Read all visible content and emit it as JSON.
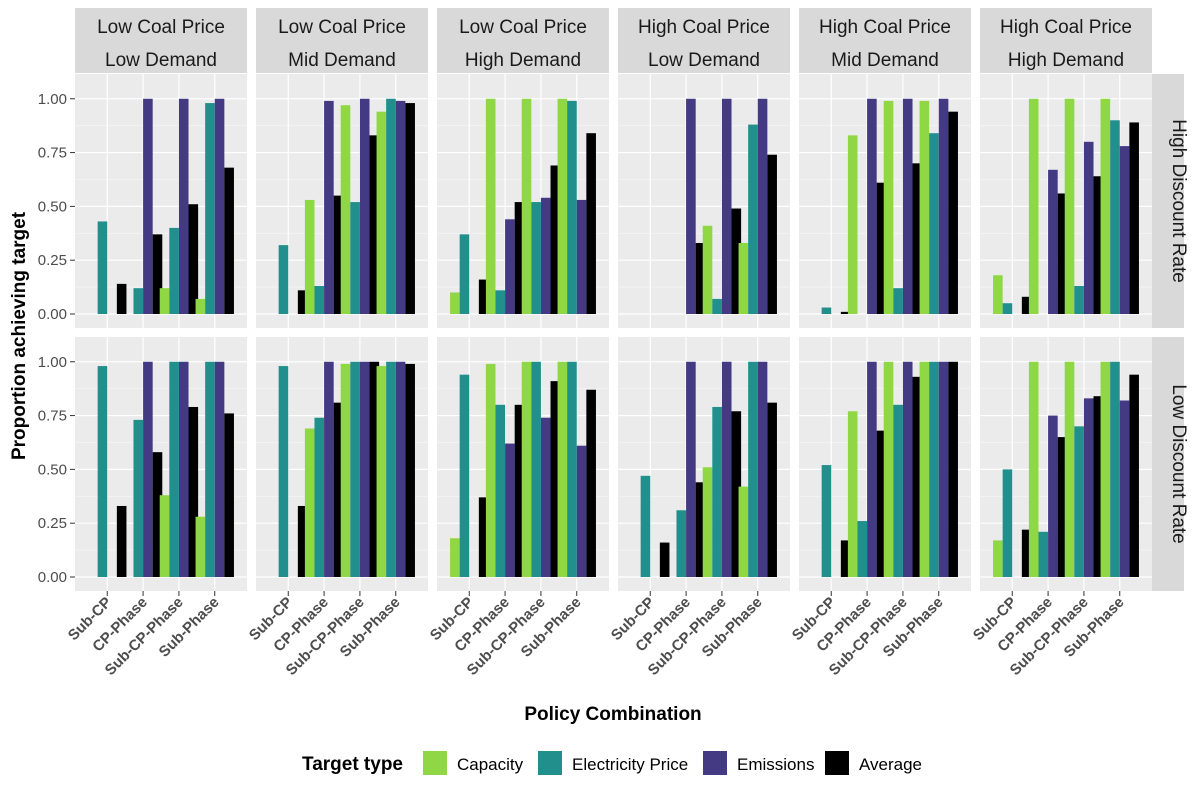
{
  "chart_data": {
    "type": "bar",
    "title": "",
    "xlabel": "Policy Combination",
    "ylabel": "Proportion achieving target",
    "ylim": [
      0,
      1.05
    ],
    "yticks": [
      "0.00",
      "0.25",
      "0.50",
      "0.75",
      "1.00"
    ],
    "ytick_values": [
      0,
      0.25,
      0.5,
      0.75,
      1.0
    ],
    "grid": true,
    "categories": [
      "Sub-CP",
      "CP-Phase",
      "Sub-CP-Phase",
      "Sub-Phase"
    ],
    "legend": {
      "title": "Target type",
      "placement": "bottom",
      "entries": [
        "Capacity",
        "Electricity Price",
        "Emissions",
        "Average"
      ]
    },
    "colors": {
      "Capacity": "#8fd744",
      "Electricity Price": "#21908c",
      "Emissions": "#443a83",
      "Average": "#000000",
      "panel_bg": "#ebebeb",
      "strip_bg": "#d9d9d9",
      "grid": "#ffffff"
    },
    "columns": [
      [
        "Low Coal Price",
        "Low Demand"
      ],
      [
        "Low Coal Price",
        "Mid Demand"
      ],
      [
        "Low Coal Price",
        "High Demand"
      ],
      [
        "High Coal Price",
        "Low Demand"
      ],
      [
        "High Coal Price",
        "Mid Demand"
      ],
      [
        "High Coal Price",
        "High Demand"
      ]
    ],
    "rows": [
      "High Discount Rate",
      "Low Discount Rate"
    ],
    "panels": [
      [
        {
          "Capacity": [
            0,
            0,
            0.12,
            0.07
          ],
          "Electricity Price": [
            0.43,
            0.12,
            0.4,
            0.98
          ],
          "Emissions": [
            0,
            1.0,
            1.0,
            1.0
          ],
          "Average": [
            0.14,
            0.37,
            0.51,
            0.68
          ]
        },
        {
          "Capacity": [
            0,
            0.53,
            0.97,
            0.94
          ],
          "Electricity Price": [
            0.32,
            0.13,
            0.52,
            1.0
          ],
          "Emissions": [
            0,
            0.99,
            1.0,
            0.99
          ],
          "Average": [
            0.11,
            0.55,
            0.83,
            0.98
          ]
        },
        {
          "Capacity": [
            0.1,
            1.0,
            1.0,
            1.0
          ],
          "Electricity Price": [
            0.37,
            0.11,
            0.52,
            0.99
          ],
          "Emissions": [
            0,
            0.44,
            0.54,
            0.53
          ],
          "Average": [
            0.16,
            0.52,
            0.69,
            0.84
          ]
        },
        {
          "Capacity": [
            0,
            0,
            0.41,
            0.33
          ],
          "Electricity Price": [
            0,
            0,
            0.07,
            0.88
          ],
          "Emissions": [
            0,
            1.0,
            1.0,
            1.0
          ],
          "Average": [
            0,
            0.33,
            0.49,
            0.74
          ]
        },
        {
          "Capacity": [
            0,
            0.83,
            0.99,
            0.99
          ],
          "Electricity Price": [
            0.03,
            0,
            0.12,
            0.84
          ],
          "Emissions": [
            0,
            1.0,
            1.0,
            1.0
          ],
          "Average": [
            0.01,
            0.61,
            0.7,
            0.94
          ]
        },
        {
          "Capacity": [
            0.18,
            1.0,
            1.0,
            1.0
          ],
          "Electricity Price": [
            0.05,
            0,
            0.13,
            0.9
          ],
          "Emissions": [
            0,
            0.67,
            0.8,
            0.78
          ],
          "Average": [
            0.08,
            0.56,
            0.64,
            0.89
          ]
        }
      ],
      [
        {
          "Capacity": [
            0,
            0,
            0.38,
            0.28
          ],
          "Electricity Price": [
            0.98,
            0.73,
            1.0,
            1.0
          ],
          "Emissions": [
            0,
            1.0,
            1.0,
            1.0
          ],
          "Average": [
            0.33,
            0.58,
            0.79,
            0.76
          ]
        },
        {
          "Capacity": [
            0,
            0.69,
            0.99,
            0.98
          ],
          "Electricity Price": [
            0.98,
            0.74,
            1.0,
            1.0
          ],
          "Emissions": [
            0,
            1.0,
            1.0,
            1.0
          ],
          "Average": [
            0.33,
            0.81,
            1.0,
            0.99
          ]
        },
        {
          "Capacity": [
            0.18,
            0.99,
            1.0,
            1.0
          ],
          "Electricity Price": [
            0.94,
            0.8,
            1.0,
            1.0
          ],
          "Emissions": [
            0,
            0.62,
            0.74,
            0.61
          ],
          "Average": [
            0.37,
            0.8,
            0.91,
            0.87
          ]
        },
        {
          "Capacity": [
            0,
            0,
            0.51,
            0.42
          ],
          "Electricity Price": [
            0.47,
            0.31,
            0.79,
            1.0
          ],
          "Emissions": [
            0,
            1.0,
            1.0,
            1.0
          ],
          "Average": [
            0.16,
            0.44,
            0.77,
            0.81
          ]
        },
        {
          "Capacity": [
            0,
            0.77,
            1.0,
            1.0
          ],
          "Electricity Price": [
            0.52,
            0.26,
            0.8,
            1.0
          ],
          "Emissions": [
            0,
            1.0,
            1.0,
            1.0
          ],
          "Average": [
            0.17,
            0.68,
            0.93,
            1.0
          ]
        },
        {
          "Capacity": [
            0.17,
            1.0,
            1.0,
            1.0
          ],
          "Electricity Price": [
            0.5,
            0.21,
            0.7,
            1.0
          ],
          "Emissions": [
            0,
            0.75,
            0.83,
            0.82
          ],
          "Average": [
            0.22,
            0.65,
            0.84,
            0.94
          ]
        }
      ]
    ]
  }
}
